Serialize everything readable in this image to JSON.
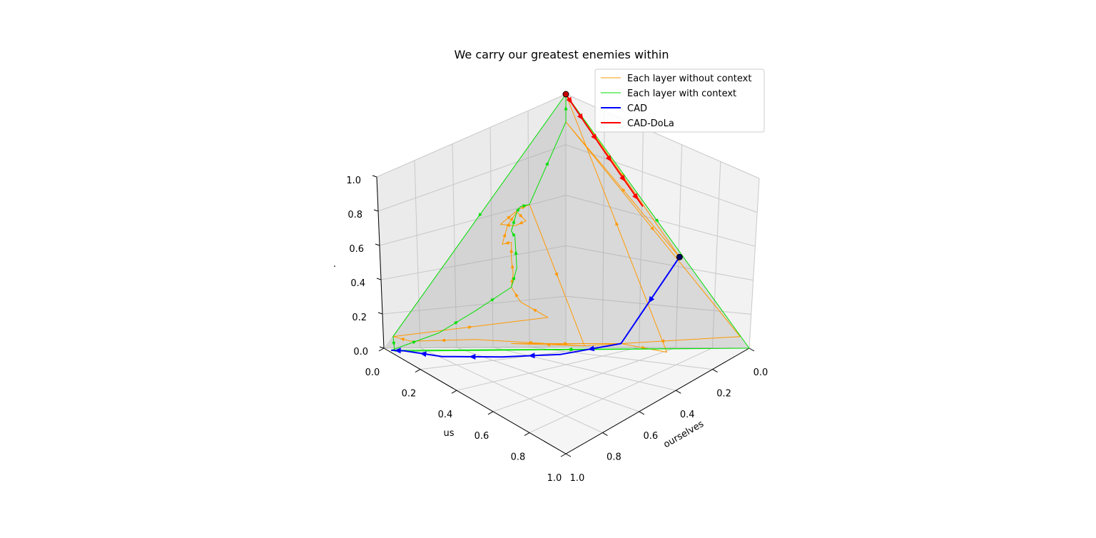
{
  "chart_data": {
    "type": "line",
    "title": "We carry our greatest enemies within",
    "axes": {
      "x": {
        "label": "ourselves",
        "ticks": [
          "0.0",
          "0.2",
          "0.4",
          "0.6",
          "0.8",
          "1.0"
        ],
        "range": [
          0,
          1
        ]
      },
      "y": {
        "label": "us",
        "ticks": [
          "0.0",
          "0.2",
          "0.4",
          "0.6",
          "0.8",
          "1.0"
        ],
        "range": [
          0,
          1
        ]
      },
      "z": {
        "label": ".",
        "ticks": [
          "0.0",
          "0.2",
          "0.4",
          "0.6",
          "0.8",
          "1.0"
        ],
        "range": [
          0,
          1
        ]
      }
    },
    "projection": "3d",
    "simplex_plane": true,
    "grid": true,
    "legend": {
      "position": "top-right"
    },
    "series": [
      {
        "name": "Each layer without context",
        "color": "#ff9900",
        "linewidth": 1,
        "points": [
          [
            0.0,
            0.0,
            1.0
          ],
          [
            0.62,
            0.0,
            0.38
          ],
          [
            0.05,
            0.05,
            0.9
          ],
          [
            0.95,
            0.0,
            0.05
          ],
          [
            0.5,
            0.4,
            0.1
          ],
          [
            0.2,
            0.7,
            0.1
          ],
          [
            0.05,
            0.9,
            0.05
          ],
          [
            0.0,
            0.95,
            0.05
          ],
          [
            0.35,
            0.45,
            0.2
          ],
          [
            0.25,
            0.5,
            0.25
          ],
          [
            0.2,
            0.5,
            0.3
          ],
          [
            0.18,
            0.47,
            0.35
          ],
          [
            0.15,
            0.45,
            0.4
          ],
          [
            0.12,
            0.42,
            0.46
          ],
          [
            0.1,
            0.45,
            0.45
          ],
          [
            0.08,
            0.4,
            0.52
          ],
          [
            0.08,
            0.35,
            0.57
          ],
          [
            0.12,
            0.34,
            0.54
          ],
          [
            0.1,
            0.38,
            0.52
          ],
          [
            0.06,
            0.42,
            0.52
          ],
          [
            0.08,
            0.34,
            0.58
          ],
          [
            0.1,
            0.3,
            0.6
          ],
          [
            0.5,
            0.4,
            0.1
          ],
          [
            0.3,
            0.6,
            0.1
          ],
          [
            0.6,
            0.3,
            0.1
          ],
          [
            0.75,
            0.2,
            0.05
          ],
          [
            0.0,
            0.0,
            1.0
          ]
        ]
      },
      {
        "name": "Each layer with context",
        "color": "#00e000",
        "linewidth": 1,
        "points": [
          [
            0.0,
            0.0,
            1.0
          ],
          [
            0.0,
            0.95,
            0.05
          ],
          [
            0.03,
            0.97,
            0.0
          ],
          [
            1.0,
            0.0,
            0.0
          ],
          [
            0.02,
            0.98,
            0.0
          ],
          [
            0.1,
            0.8,
            0.1
          ],
          [
            0.15,
            0.65,
            0.2
          ],
          [
            0.2,
            0.5,
            0.3
          ],
          [
            0.18,
            0.45,
            0.37
          ],
          [
            0.12,
            0.4,
            0.48
          ],
          [
            0.1,
            0.4,
            0.5
          ],
          [
            0.08,
            0.35,
            0.57
          ],
          [
            0.08,
            0.33,
            0.59
          ],
          [
            0.1,
            0.3,
            0.6
          ],
          [
            0.05,
            0.05,
            0.9
          ],
          [
            0.0,
            0.0,
            1.0
          ],
          [
            1.0,
            0.0,
            0.0
          ]
        ]
      },
      {
        "name": "CAD",
        "color": "#0000ff",
        "linewidth": 2,
        "points": [
          [
            0.62,
            0.0,
            0.38
          ],
          [
            0.6,
            0.3,
            0.1
          ],
          [
            0.45,
            0.48,
            0.07
          ],
          [
            0.3,
            0.65,
            0.05
          ],
          [
            0.15,
            0.83,
            0.02
          ],
          [
            0.05,
            0.94,
            0.01
          ],
          [
            0.02,
            0.98,
            0.0
          ]
        ]
      },
      {
        "name": "CAD-DoLa",
        "color": "#ff0000",
        "linewidth": 2,
        "points": [
          [
            0.0,
            0.0,
            1.0
          ],
          [
            0.05,
            0.0,
            0.95
          ],
          [
            0.12,
            0.0,
            0.88
          ],
          [
            0.2,
            0.0,
            0.8
          ],
          [
            0.28,
            0.0,
            0.72
          ],
          [
            0.35,
            0.0,
            0.65
          ],
          [
            0.42,
            0.0,
            0.58
          ]
        ]
      }
    ]
  }
}
